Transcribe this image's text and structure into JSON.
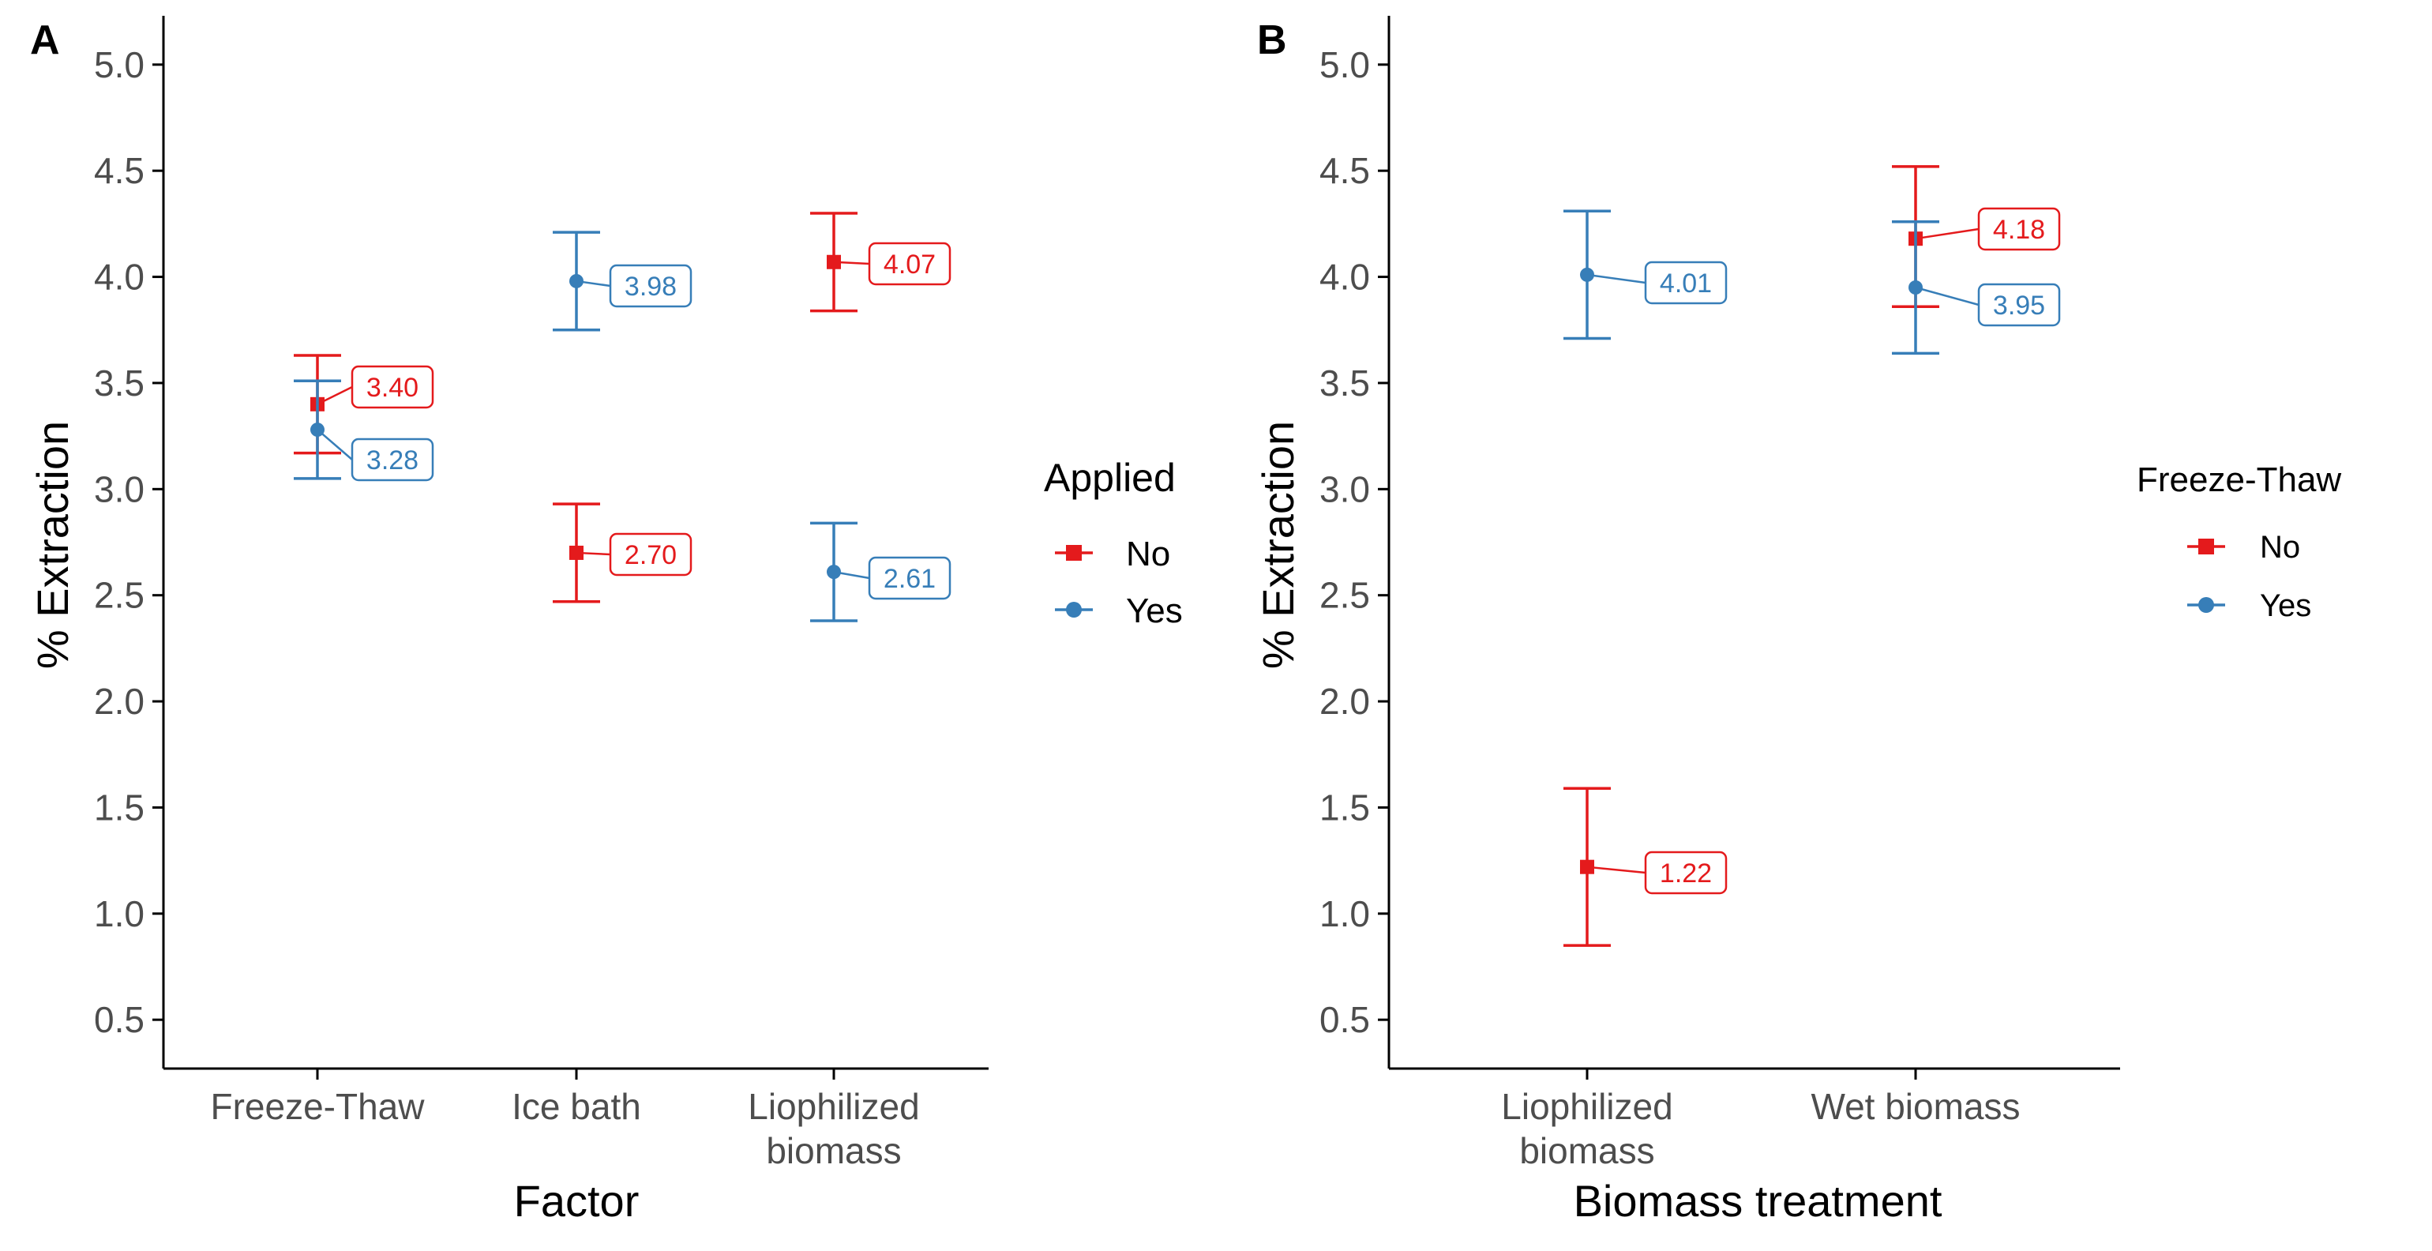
{
  "colors": {
    "No": "#e41a1c",
    "Yes": "#377eb8",
    "axis": "#000000",
    "tick": "#4d4d4d"
  },
  "chart_data": [
    {
      "panel": "A",
      "type": "scatter",
      "title": "",
      "xlabel": "Factor",
      "ylabel": "% Extraction",
      "ylim": [
        0.27,
        5.23
      ],
      "yticks": [
        "0.5",
        "1.0",
        "1.5",
        "2.0",
        "2.5",
        "3.0",
        "3.5",
        "4.0",
        "4.5",
        "5.0"
      ],
      "categories": [
        "Freeze-Thaw",
        "Ice bath",
        "Liophilized\nbiomass"
      ],
      "legend": {
        "title": "Applied",
        "placement": "right",
        "entries": [
          "No",
          "Yes"
        ]
      },
      "series": [
        {
          "name": "No",
          "marker": "square",
          "points": [
            {
              "category": "Freeze-Thaw",
              "value": 3.4,
              "lower": 3.17,
              "upper": 3.63,
              "label": "3.40"
            },
            {
              "category": "Ice bath",
              "value": 2.7,
              "lower": 2.47,
              "upper": 2.93,
              "label": "2.70"
            },
            {
              "category": "Liophilized\nbiomass",
              "value": 4.07,
              "lower": 3.84,
              "upper": 4.3,
              "label": "4.07"
            }
          ]
        },
        {
          "name": "Yes",
          "marker": "circle",
          "points": [
            {
              "category": "Freeze-Thaw",
              "value": 3.28,
              "lower": 3.05,
              "upper": 3.51,
              "label": "3.28"
            },
            {
              "category": "Ice bath",
              "value": 3.98,
              "lower": 3.75,
              "upper": 4.21,
              "label": "3.98"
            },
            {
              "category": "Liophilized\nbiomass",
              "value": 2.61,
              "lower": 2.38,
              "upper": 2.84,
              "label": "2.61"
            }
          ]
        }
      ]
    },
    {
      "panel": "B",
      "type": "scatter",
      "title": "",
      "xlabel": "Biomass treatment",
      "ylabel": "% Extraction",
      "ylim": [
        0.27,
        5.23
      ],
      "yticks": [
        "0.5",
        "1.0",
        "1.5",
        "2.0",
        "2.5",
        "3.0",
        "3.5",
        "4.0",
        "4.5",
        "5.0"
      ],
      "categories": [
        "Liophilized\nbiomass",
        "Wet biomass"
      ],
      "legend": {
        "title": "Freeze-Thaw",
        "placement": "right",
        "entries": [
          "No",
          "Yes"
        ]
      },
      "series": [
        {
          "name": "No",
          "marker": "square",
          "points": [
            {
              "category": "Liophilized\nbiomass",
              "value": 1.22,
              "lower": 0.85,
              "upper": 1.59,
              "label": "1.22"
            },
            {
              "category": "Wet biomass",
              "value": 4.18,
              "lower": 3.86,
              "upper": 4.52,
              "label": "4.18"
            }
          ]
        },
        {
          "name": "Yes",
          "marker": "circle",
          "points": [
            {
              "category": "Liophilized\nbiomass",
              "value": 4.01,
              "lower": 3.71,
              "upper": 4.31,
              "label": "4.01"
            },
            {
              "category": "Wet biomass",
              "value": 3.95,
              "lower": 3.64,
              "upper": 4.26,
              "label": "3.95"
            }
          ]
        }
      ]
    }
  ]
}
